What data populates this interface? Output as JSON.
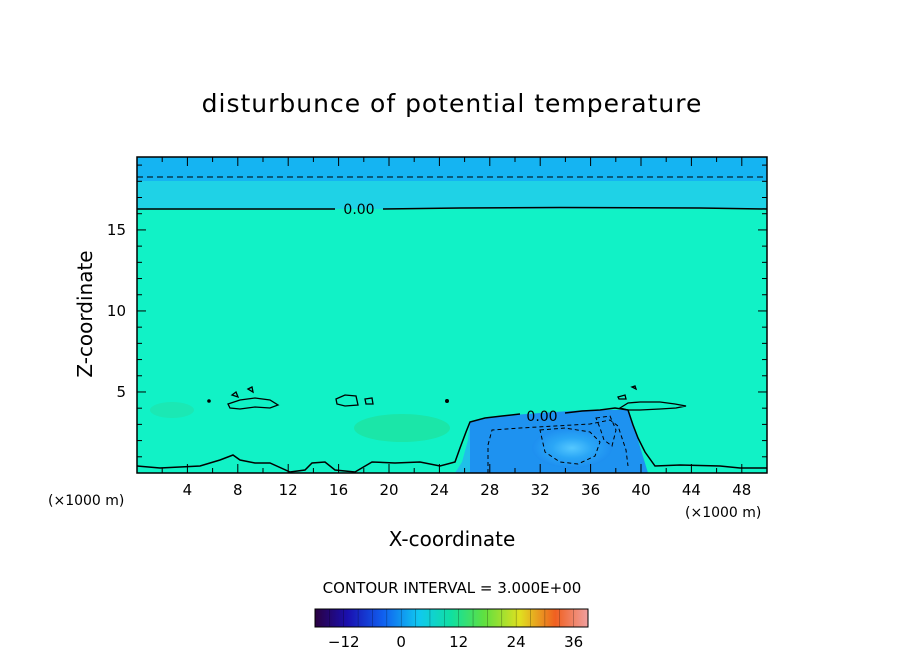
{
  "chart_data": {
    "type": "heatmap",
    "title": "disturbunce of potential temperature",
    "xlabel": "X-coordinate",
    "ylabel": "Z-coordinate",
    "x_unit": "(×1000 m)",
    "xlim": [
      0,
      50
    ],
    "ylim": [
      0,
      19.5
    ],
    "x_ticks": [
      4,
      8,
      12,
      16,
      20,
      24,
      28,
      32,
      36,
      40,
      44,
      48
    ],
    "y_ticks": [
      5,
      10,
      15
    ],
    "contour_interval_label": "CONTOUR INTERVAL = 3.000E+00",
    "contour_labels": [
      {
        "text": "0.00",
        "x": 17.5,
        "z": 16.6
      },
      {
        "text": "0.00",
        "x": 32.5,
        "z": 3.5
      }
    ],
    "colorbar": {
      "min": -18,
      "max": 39,
      "ticks": [
        -12,
        0,
        12,
        24,
        36
      ],
      "colormap": "rainbow"
    },
    "features": [
      {
        "name": "upper negative layer",
        "x": [
          0,
          50
        ],
        "z": [
          16.7,
          19.5
        ],
        "value": -3
      },
      {
        "name": "cold pool",
        "x": [
          27,
          39
        ],
        "z": [
          0,
          3.5
        ],
        "value": -9
      },
      {
        "name": "background",
        "x": [
          0,
          50
        ],
        "z": [
          0,
          16.7
        ],
        "value": 0
      }
    ]
  }
}
